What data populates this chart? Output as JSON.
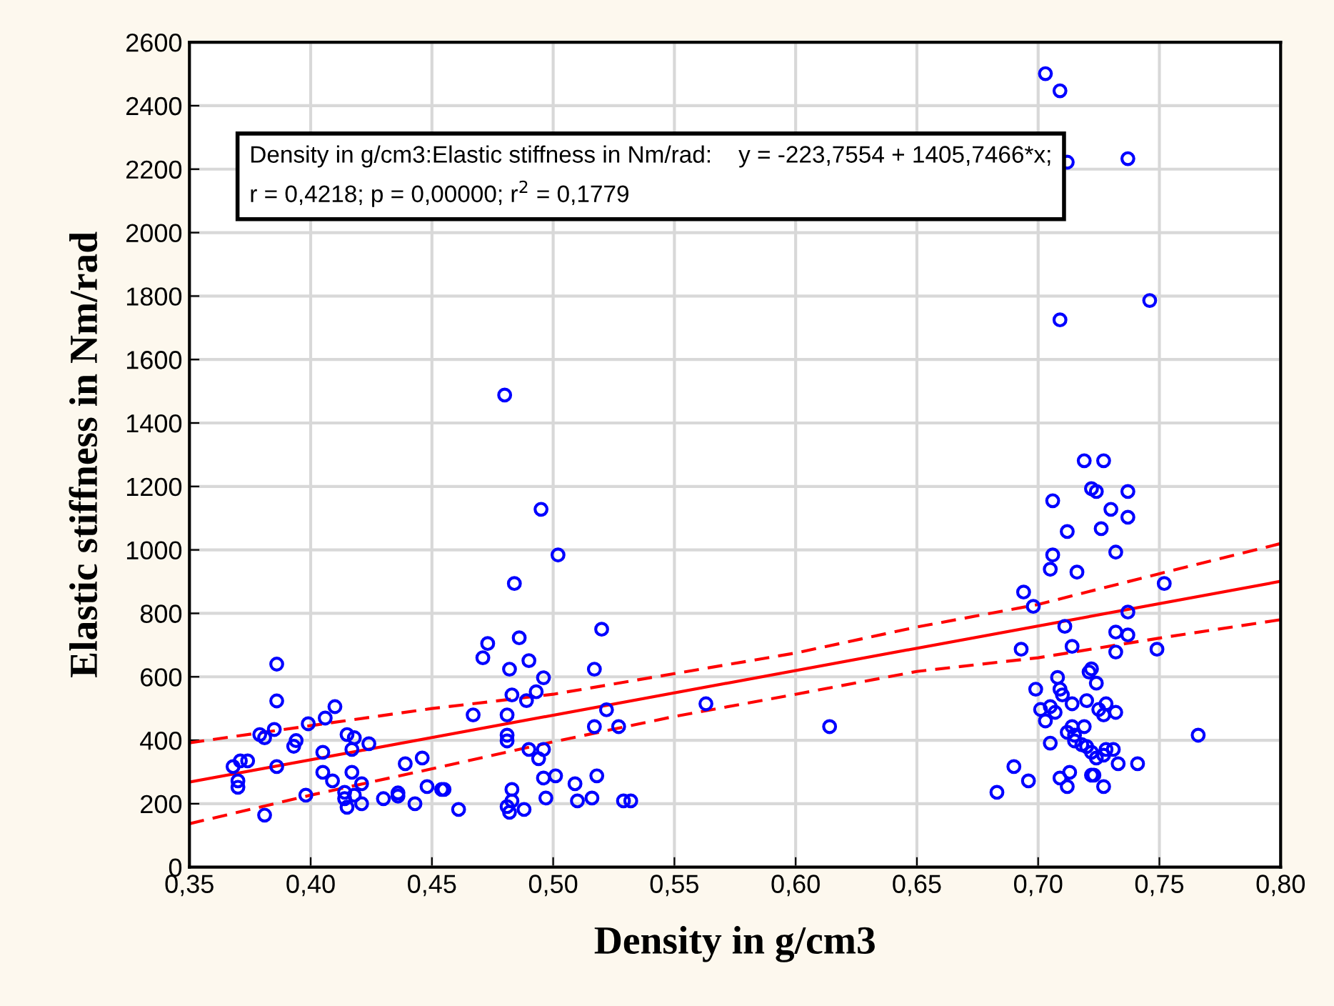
{
  "chart_data": {
    "type": "scatter",
    "xlabel": "Density in g/cm3",
    "ylabel": "Elastic stiffness in Nm/rad",
    "annotations": [
      "Density in g/cm3:Elastic stiffness in Nm/rad:    y = -223,7554 + 1405,7466*x;\nr = 0,4218; p = 0,00000; r$^{2}$ = 0,1779"
    ],
    "xlim": [
      0.35,
      0.8
    ],
    "ylim": [
      0,
      2600
    ],
    "xticks": [
      {
        "value": 0.35,
        "label": "0,35"
      },
      {
        "value": 0.4,
        "label": "0,40"
      },
      {
        "value": 0.45,
        "label": "0,45"
      },
      {
        "value": 0.5,
        "label": "0,50"
      },
      {
        "value": 0.55,
        "label": "0,55"
      },
      {
        "value": 0.6,
        "label": "0,60"
      },
      {
        "value": 0.65,
        "label": "0,65"
      },
      {
        "value": 0.7,
        "label": "0,70"
      },
      {
        "value": 0.75,
        "label": "0,75"
      },
      {
        "value": 0.8,
        "label": "0,80"
      }
    ],
    "yticks": [
      0,
      200,
      400,
      600,
      800,
      1000,
      1200,
      1400,
      1600,
      1800,
      2000,
      2200,
      2400,
      2600
    ],
    "grid": true,
    "legend": false,
    "series": [
      {
        "marker": "circle",
        "color": "#0000ff",
        "x": [
          0.386,
          0.386,
          0.41,
          0.399,
          0.406,
          0.385,
          0.379,
          0.381,
          0.394,
          0.393,
          0.415,
          0.418,
          0.417,
          0.424,
          0.405,
          0.368,
          0.371,
          0.374,
          0.386,
          0.405,
          0.417,
          0.409,
          0.421,
          0.37,
          0.37,
          0.439,
          0.446,
          0.448,
          0.398,
          0.414,
          0.414,
          0.418,
          0.415,
          0.421,
          0.43,
          0.436,
          0.436,
          0.443,
          0.381,
          0.454,
          0.48,
          0.495,
          0.502,
          0.484,
          0.52,
          0.473,
          0.471,
          0.486,
          0.482,
          0.49,
          0.517,
          0.496,
          0.483,
          0.493,
          0.489,
          0.467,
          0.481,
          0.522,
          0.517,
          0.527,
          0.481,
          0.481,
          0.49,
          0.496,
          0.494,
          0.496,
          0.501,
          0.518,
          0.509,
          0.483,
          0.455,
          0.497,
          0.51,
          0.516,
          0.529,
          0.532,
          0.483,
          0.481,
          0.482,
          0.488,
          0.461,
          0.563,
          0.614,
          0.703,
          0.709,
          0.712,
          0.737,
          0.746,
          0.709,
          0.719,
          0.727,
          0.722,
          0.724,
          0.737,
          0.706,
          0.73,
          0.737,
          0.712,
          0.726,
          0.706,
          0.732,
          0.705,
          0.716,
          0.694,
          0.698,
          0.752,
          0.737,
          0.711,
          0.732,
          0.737,
          0.693,
          0.714,
          0.732,
          0.749,
          0.722,
          0.721,
          0.708,
          0.724,
          0.699,
          0.709,
          0.71,
          0.714,
          0.72,
          0.728,
          0.705,
          0.701,
          0.725,
          0.707,
          0.727,
          0.732,
          0.703,
          0.714,
          0.719,
          0.712,
          0.715,
          0.715,
          0.705,
          0.718,
          0.72,
          0.722,
          0.724,
          0.727,
          0.728,
          0.731,
          0.733,
          0.741,
          0.766,
          0.69,
          0.696,
          0.683,
          0.709,
          0.713,
          0.712,
          0.722,
          0.723,
          0.727
        ],
        "values": [
          640,
          524,
          506,
          452,
          470,
          434,
          418,
          408,
          399,
          381,
          418,
          408,
          371,
          389,
          362,
          317,
          335,
          335,
          317,
          299,
          299,
          272,
          263,
          272,
          252,
          326,
          344,
          254,
          227,
          236,
          216,
          227,
          189,
          200,
          216,
          234,
          224,
          200,
          164,
          245,
          1488,
          1128,
          984,
          894,
          750,
          705,
          660,
          723,
          624,
          651,
          624,
          597,
          543,
          553,
          525,
          480,
          480,
          496,
          443,
          443,
          416,
          398,
          371,
          371,
          342,
          281,
          288,
          288,
          263,
          245,
          245,
          218,
          209,
          218,
          209,
          209,
          209,
          191,
          173,
          182,
          182,
          515,
          443,
          2501,
          2447,
          2222,
          2233,
          1786,
          1725,
          1281,
          1281,
          1193,
          1184,
          1184,
          1155,
          1128,
          1103,
          1058,
          1067,
          984,
          993,
          939,
          930,
          867,
          822,
          894,
          804,
          759,
          741,
          732,
          687,
          696,
          678,
          687,
          625,
          615,
          598,
          580,
          561,
          561,
          543,
          515,
          525,
          515,
          506,
          497,
          497,
          488,
          480,
          488,
          461,
          443,
          443,
          425,
          416,
          398,
          391,
          386,
          380,
          362,
          344,
          353,
          371,
          371,
          326,
          326,
          416,
          317,
          272,
          236,
          281,
          299,
          254,
          290,
          290,
          254
        ]
      },
      {
        "type": "line",
        "marker": "none",
        "line_style": "solid",
        "color": "#ff0000",
        "x": [
          0.35,
          0.8
        ],
        "values": [
          268,
          901
        ]
      },
      {
        "type": "line",
        "marker": "none",
        "line_style": "dashed",
        "color": "#ff0000",
        "x": [
          0.35,
          0.4,
          0.45,
          0.5,
          0.55,
          0.6,
          0.65,
          0.7,
          0.75,
          0.8
        ],
        "values": [
          392,
          446,
          500,
          545,
          610,
          675,
          757,
          828,
          925,
          1020
        ]
      },
      {
        "type": "line",
        "marker": "none",
        "line_style": "dashed",
        "color": "#ff0000",
        "x": [
          0.35,
          0.4,
          0.45,
          0.5,
          0.55,
          0.6,
          0.65,
          0.7,
          0.75,
          0.8
        ],
        "values": [
          137,
          227,
          310,
          395,
          475,
          545,
          617,
          660,
          722,
          780
        ]
      }
    ]
  }
}
